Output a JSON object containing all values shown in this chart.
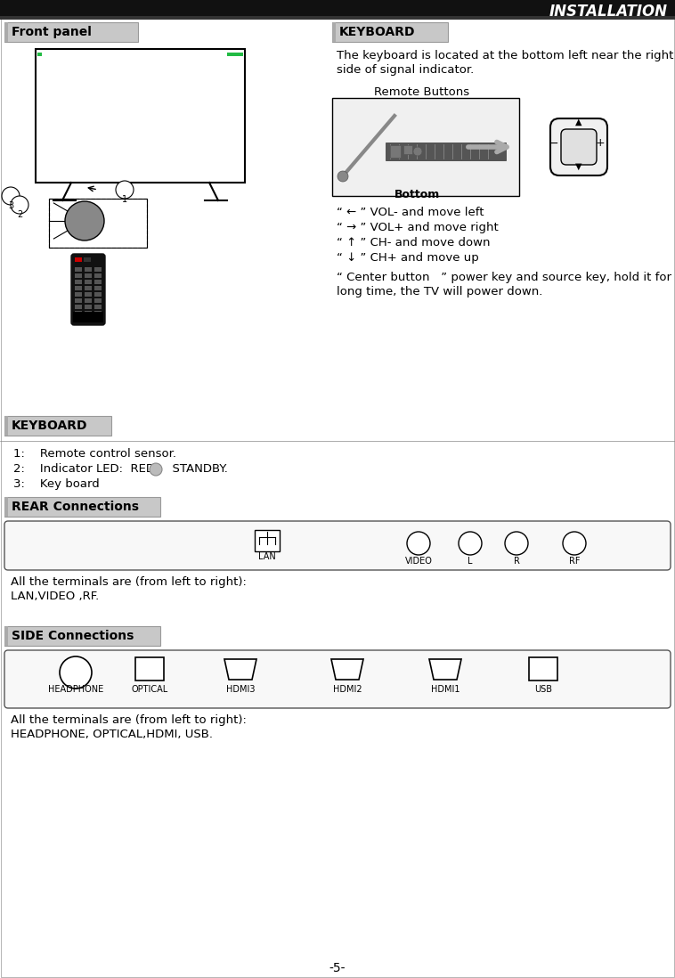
{
  "title": "INSTALLATION",
  "page_num": "-5-",
  "front_panel_label": "Front panel",
  "keyboard_label_right": "KEYBOARD",
  "keyboard_label_left": "KEYBOARD",
  "rear_label": "REAR Connections",
  "side_label": "SIDE Connections",
  "keyboard_desc_line1": "The keyboard is located at the bottom left near the right",
  "keyboard_desc_line2": "side of signal indicator.",
  "remote_buttons_label": "Remote Buttons",
  "bottom_label": "Bottom",
  "vol_minus": "“ ← ” VOL- and move left",
  "vol_plus": "“ → ” VOL+ and move right",
  "ch_minus": "“ ↑ ” CH- and move down",
  "ch_plus": "“ ↓ ” CH+ and move up",
  "center_btn_line1": "“ Center button   ” power key and source key, hold it for a",
  "center_btn_line2": "long time, the TV will power down.",
  "item1": "1:    Remote control sensor.",
  "item2_pre": "2:    Indicator LED:  RED ",
  "item2_post": "  STANDBY.",
  "item3": "3:    Key board",
  "rear_desc1": "All the terminals are (from left to right):",
  "rear_desc2": "LAN,VIDEO ,RF.",
  "side_desc1": "All the terminals are (from left to right):",
  "side_desc2": "HEADPHONE, OPTICAL,HDMI, USB.",
  "rear_ports": [
    "LAN",
    "VIDEO",
    "L",
    "R",
    "RF"
  ],
  "side_ports": [
    "HEADPHONE",
    "OPTICAL",
    "HDMI3",
    "HDMI2",
    "HDMI1",
    "USB"
  ],
  "bg_color": "#ffffff",
  "header_bg": "#111111",
  "section_bg_light": "#d4d4d4",
  "section_bg_dark": "#b0b0b0"
}
